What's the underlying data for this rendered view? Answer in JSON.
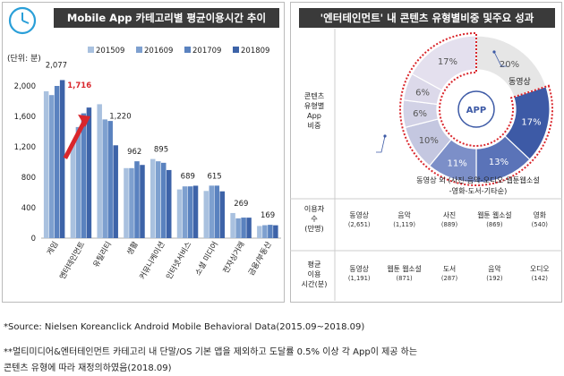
{
  "left_title": "Mobile App 카테고리별 평균이용시간 추이",
  "right_title": "'엔터테인먼트' 내 콘텐츠 유형별비중 및주요 성과",
  "chart_data": [
    {
      "type": "bar",
      "title": "Mobile App 카테고리별 평균이용시간 추이",
      "ylabel": "(단위: 분)",
      "ylim": [
        0,
        2000
      ],
      "yticks": [
        "0",
        "400",
        "800",
        "1,200",
        "1,600",
        "2,000"
      ],
      "legend_position": "top",
      "categories": [
        "게임",
        "엔터테인먼트",
        "유틸리티",
        "생활",
        "커뮤니케이션",
        "인터넷서비스",
        "소셜 미디어",
        "전자상거래",
        "금융/부동산"
      ],
      "series": [
        {
          "name": "201509",
          "color": "#a9c1df",
          "values": [
            1930,
            1250,
            1760,
            920,
            1040,
            640,
            620,
            330,
            160
          ]
        },
        {
          "name": "201609",
          "color": "#7ea0cf",
          "values": [
            1880,
            1460,
            1560,
            920,
            1010,
            680,
            690,
            260,
            170
          ]
        },
        {
          "name": "201709",
          "color": "#5a82bf",
          "values": [
            2000,
            1640,
            1540,
            1010,
            990,
            680,
            690,
            270,
            175
          ]
        },
        {
          "name": "201809",
          "color": "#3d63a8",
          "values": [
            2077,
            1716,
            1220,
            962,
            895,
            689,
            615,
            269,
            169
          ]
        }
      ],
      "data_labels": [
        "2,077",
        "1,716",
        "1,220",
        "962",
        "895",
        "689",
        "615",
        "269",
        "169"
      ],
      "highlight_color": "#d9262c"
    },
    {
      "type": "pie",
      "title": "'엔터테인먼트' 내 콘텐츠 유형별비중 및주요 성과",
      "center_label": "APP",
      "row_label": "콘텐츠 유형별 App 비중",
      "slices": [
        {
          "label": "20%",
          "value": 20,
          "color": "#e6e6e6"
        },
        {
          "label": "17%",
          "value": 17,
          "color": "#3d5aa6"
        },
        {
          "label": "13%",
          "value": 13,
          "color": "#5a73b8"
        },
        {
          "label": "11%",
          "value": 11,
          "color": "#7c8fc8"
        },
        {
          "label": "10%",
          "value": 10,
          "color": "#c4c7e0"
        },
        {
          "label": "6%",
          "value": 6,
          "color": "#d2d2e6"
        },
        {
          "label": "6%",
          "value": 6,
          "color": "#dcd9ea"
        },
        {
          "label": "17%",
          "value": 17,
          "color": "#e4e0ee"
        }
      ],
      "annotation_video": "동영상",
      "annotation_other": "동영상 외 (사진-음악-오디오-웹툰웹소설 -영화-도서-기타순)",
      "other_line1": "동영상 외 (사진-음악-오디오-웹툰웹소설",
      "other_line2": "-영화-도서-기타순)"
    }
  ],
  "table": {
    "users_header": "이용자 수 (만명)",
    "users_header_lines": [
      "이용자",
      "수",
      "(만명)"
    ],
    "users": [
      {
        "name": "동영상",
        "value": "(2,651)"
      },
      {
        "name": "음악",
        "value": "(1,119)"
      },
      {
        "name": "사진",
        "value": "(889)"
      },
      {
        "name": "웹툰 웹소설",
        "value": "(869)"
      },
      {
        "name": "영화",
        "value": "(540)"
      }
    ],
    "time_header": "평균 이용 시간(분)",
    "time_header_lines": [
      "평균",
      "이용",
      "시간(분)"
    ],
    "time": [
      {
        "name": "동영상",
        "value": "(1,191)"
      },
      {
        "name": "웹툰 웹소설",
        "value": "(871)"
      },
      {
        "name": "도서",
        "value": "(287)"
      },
      {
        "name": "음악",
        "value": "(192)"
      },
      {
        "name": "오디오",
        "value": "(142)"
      }
    ],
    "share_header_lines": [
      "콘텐츠",
      "유형별",
      "App",
      "비중"
    ]
  },
  "footnotes": {
    "source": "*Source: Nielsen Koreanclick Android Mobile Behavioral Data(2015.09~2018.09)",
    "note_line1": "**멀티미디어&엔터테인먼트 카테고리 내 단말/OS 기본 앱을 제외하고 도달률 0.5% 이상 각 App이 제공 하는",
    "note_line2": "콘텐츠 유형에 따라 재정의하였음(2018.09)"
  },
  "icons": {
    "clock": "clock-icon",
    "arrow": "trend-arrow-icon"
  }
}
